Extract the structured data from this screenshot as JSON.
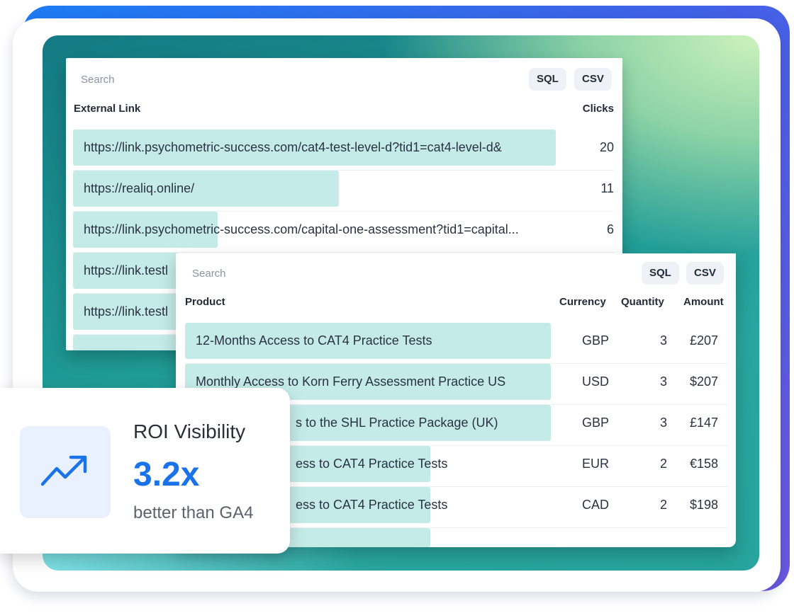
{
  "links_table": {
    "search_placeholder": "Search",
    "sql_label": "SQL",
    "csv_label": "CSV",
    "col_link": "External Link",
    "col_clicks": "Clicks",
    "rows": [
      {
        "link": "https://link.psychometric-success.com/cat4-test-level-d?tid1=cat4-level-d&",
        "clicks": "20",
        "share": 1.0
      },
      {
        "link": "https://realiq.online/",
        "clicks": "11",
        "share": 0.55
      },
      {
        "link": "https://link.psychometric-success.com/capital-one-assessment?tid1=capital...",
        "clicks": "6",
        "share": 0.3
      },
      {
        "link": "https://link.testl",
        "clicks": "",
        "share": 0.22
      },
      {
        "link": "https://link.testl",
        "clicks": "",
        "share": 0.22
      },
      {
        "link": "",
        "clicks": "",
        "share": 0.22
      }
    ]
  },
  "products_table": {
    "search_placeholder": "Search",
    "sql_label": "SQL",
    "csv_label": "CSV",
    "col_product": "Product",
    "col_currency": "Currency",
    "col_quantity": "Quantity",
    "col_amount": "Amount",
    "rows": [
      {
        "product": "12-Months Access to CAT4 Practice Tests",
        "currency": "GBP",
        "quantity": "3",
        "amount": "£207",
        "share": 1.0
      },
      {
        "product": "Monthly Access to Korn Ferry Assessment Practice US",
        "currency": "USD",
        "quantity": "3",
        "amount": "$207",
        "share": 1.0
      },
      {
        "product": "s to the SHL Practice Package (UK)",
        "currency": "GBP",
        "quantity": "3",
        "amount": "£147",
        "share": 1.0
      },
      {
        "product": "ess to CAT4 Practice Tests",
        "currency": "EUR",
        "quantity": "2",
        "amount": "€158",
        "share": 0.67
      },
      {
        "product": "ess to CAT4 Practice Tests",
        "currency": "CAD",
        "quantity": "2",
        "amount": "$198",
        "share": 0.67
      },
      {
        "product": "",
        "currency": "",
        "quantity": "",
        "amount": "",
        "share": 0.67
      }
    ]
  },
  "roi_card": {
    "title": "ROI Visibility",
    "value": "3.2x",
    "subtitle": "better than GA4",
    "icon": "trending-up-icon",
    "accent_color": "#1a73e8"
  }
}
